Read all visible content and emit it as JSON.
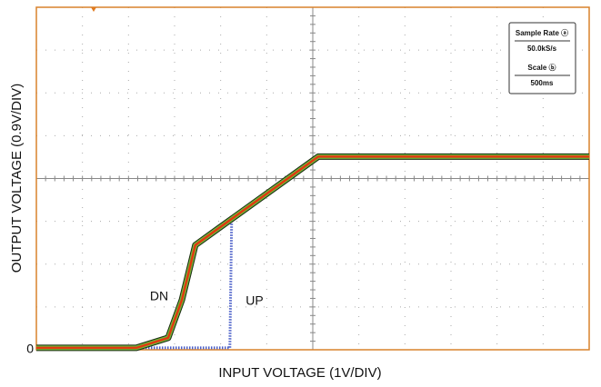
{
  "chart_data": {
    "type": "line",
    "x_label": "INPUT VOLTAGE (1V/DIV)",
    "y_label": "OUTPUT VOLTAGE (0.9V/DIV)",
    "x_per_div": 1,
    "y_per_div": 0.9,
    "xlim": [
      0,
      12
    ],
    "ylim": [
      0,
      7.2
    ],
    "yticks": [
      0
    ],
    "grid": true,
    "series": [
      {
        "name": "UP",
        "color": "#4a5fc8",
        "x": [
          0,
          4.2,
          4.24,
          6.12,
          12
        ],
        "values": [
          0.04,
          0.04,
          2.75,
          4.06,
          4.06
        ]
      },
      {
        "name": "DN",
        "color": "#e03a10",
        "x": [
          0,
          2.17,
          2.86,
          3.16,
          3.45,
          3.95,
          6.12,
          12
        ],
        "values": [
          0.04,
          0.04,
          0.25,
          1.05,
          2.2,
          2.55,
          4.06,
          4.06
        ]
      }
    ],
    "info": [
      {
        "label": "Sample Rate ⓐ",
        "value": "50.0kS/s"
      },
      {
        "label": "Scale ⓑ",
        "value": "500ms"
      }
    ]
  }
}
